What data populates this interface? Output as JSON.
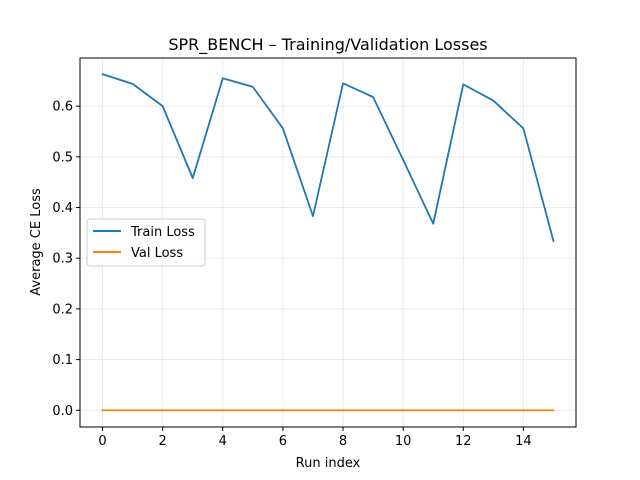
{
  "chart_data": {
    "type": "line",
    "title": "SPR_BENCH – Training/Validation Losses",
    "xlabel": "Run index",
    "ylabel": "Average CE Loss",
    "x": [
      0,
      1,
      2,
      3,
      4,
      5,
      6,
      7,
      8,
      9,
      10,
      11,
      12,
      13,
      14,
      15
    ],
    "series": [
      {
        "name": "Train Loss",
        "color": "#1f77b4",
        "values": [
          0.663,
          0.644,
          0.6,
          0.458,
          0.655,
          0.638,
          0.556,
          0.383,
          0.645,
          0.618,
          0.494,
          0.368,
          0.643,
          0.611,
          0.556,
          0.334
        ]
      },
      {
        "name": "Val Loss",
        "color": "#ff7f0e",
        "values": [
          0,
          0,
          0,
          0,
          0,
          0,
          0,
          0,
          0,
          0,
          0,
          0,
          0,
          0,
          0,
          0
        ]
      }
    ],
    "xticks": [
      0,
      2,
      4,
      6,
      8,
      10,
      12,
      14
    ],
    "yticks": [
      0.0,
      0.1,
      0.2,
      0.3,
      0.4,
      0.5,
      0.6
    ],
    "ytick_labels": [
      "0.0",
      "0.1",
      "0.2",
      "0.3",
      "0.4",
      "0.5",
      "0.6"
    ],
    "xlim": [
      -0.75,
      15.75
    ],
    "ylim": [
      -0.033,
      0.695
    ],
    "grid": true,
    "legend_position": "center-left"
  }
}
